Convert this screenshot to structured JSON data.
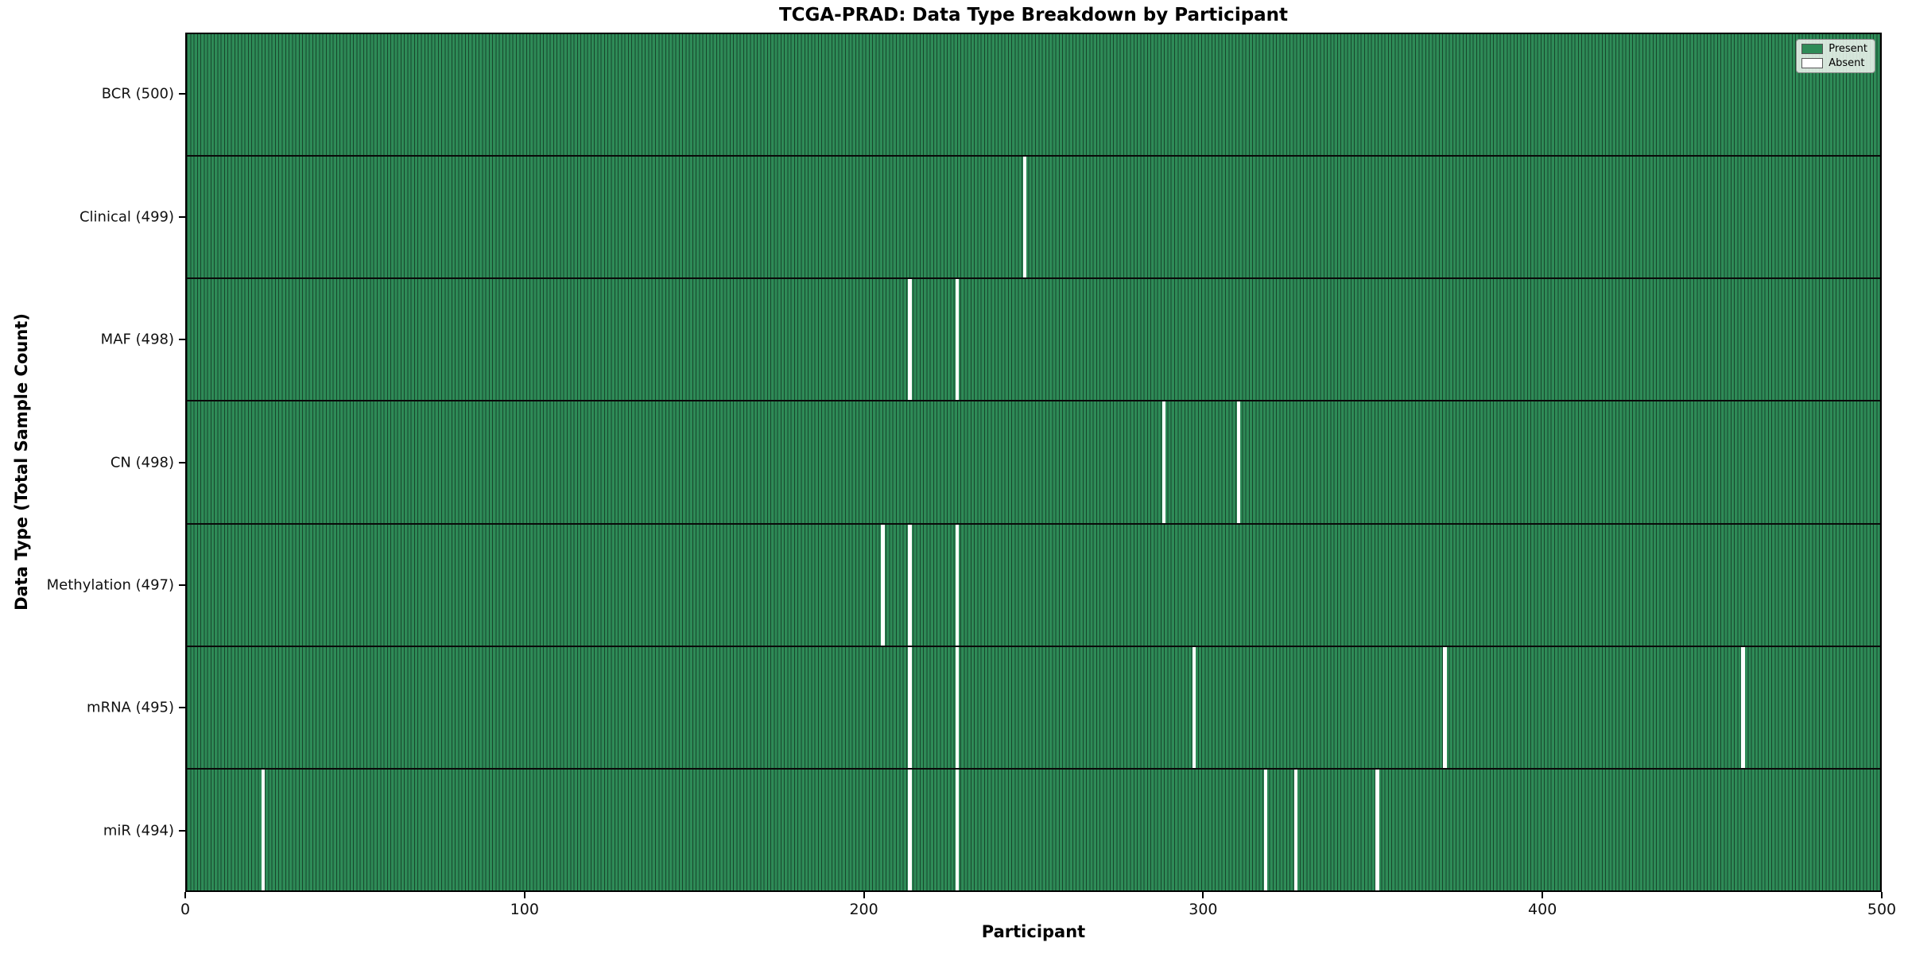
{
  "chart_data": {
    "type": "heatmap",
    "title": "TCGA-PRAD: Data Type Breakdown by Participant",
    "xlabel": "Participant",
    "ylabel": "Data Type (Total Sample Count)",
    "x_range": [
      0,
      500
    ],
    "n_participants": 500,
    "x_ticks": [
      0,
      100,
      200,
      300,
      400,
      500
    ],
    "grid": false,
    "legend_position": "upper right",
    "rows": [
      {
        "name": "BCR",
        "label": "BCR (500)",
        "total": 500,
        "absent_participants": []
      },
      {
        "name": "Clinical",
        "label": "Clinical (499)",
        "total": 499,
        "absent_participants": [
          247
        ]
      },
      {
        "name": "MAF",
        "label": "MAF (498)",
        "total": 498,
        "absent_participants": [
          213,
          227
        ]
      },
      {
        "name": "CN",
        "label": "CN (498)",
        "total": 498,
        "absent_participants": [
          288,
          310
        ]
      },
      {
        "name": "Methylation",
        "label": "Methylation (497)",
        "total": 497,
        "absent_participants": [
          205,
          213,
          227
        ]
      },
      {
        "name": "mRNA",
        "label": "mRNA (495)",
        "total": 495,
        "absent_participants": [
          213,
          227,
          297,
          371,
          459
        ]
      },
      {
        "name": "miR",
        "label": "miR (494)",
        "total": 494,
        "absent_participants": [
          22,
          213,
          227,
          318,
          327,
          351
        ]
      }
    ],
    "legend": [
      {
        "label": "Present",
        "color": "#2e8b57"
      },
      {
        "label": "Absent",
        "color": "#ffffff"
      }
    ]
  },
  "colors": {
    "present": "#2e8b57",
    "absent": "#ffffff",
    "cell_edge": "#17462c",
    "row_separator": "#0a0a0a",
    "axis": "#000000"
  }
}
